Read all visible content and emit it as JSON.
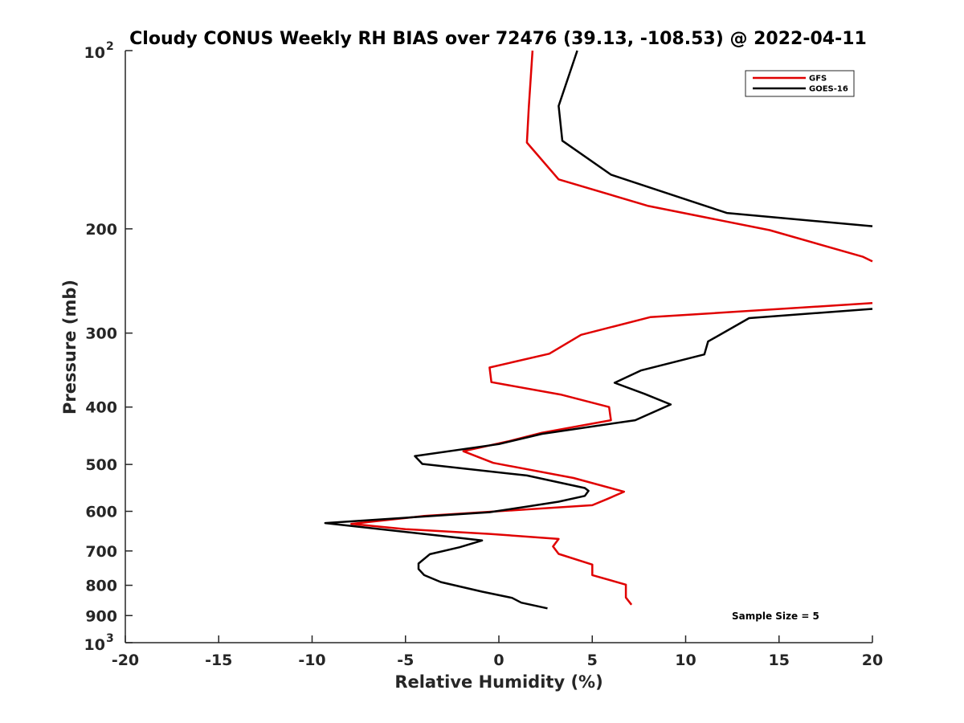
{
  "chart_data": {
    "type": "line",
    "title": "Cloudy CONUS Weekly RH BIAS over 72476 (39.13, -108.53) @ 2022-04-11",
    "xlabel": "Relative Humidity (%)",
    "ylabel": "Pressure (mb)",
    "xlim": [
      -20,
      20
    ],
    "ylim": [
      100,
      1000
    ],
    "y_scale": "log",
    "y_reversed": true,
    "grid": false,
    "legend_position": "top-right",
    "x_ticks": [
      "-20",
      "-15",
      "-10",
      "-5",
      "0",
      "5",
      "10",
      "15",
      "20"
    ],
    "x_tick_values": [
      -20,
      -15,
      -10,
      -5,
      0,
      5,
      10,
      15,
      20
    ],
    "y_ticks": [
      {
        "value": 100,
        "base": "10",
        "exp": "2"
      },
      {
        "value": 200,
        "label": "200"
      },
      {
        "value": 300,
        "label": "300"
      },
      {
        "value": 400,
        "label": "400"
      },
      {
        "value": 500,
        "label": "500"
      },
      {
        "value": 600,
        "label": "600"
      },
      {
        "value": 700,
        "label": "700"
      },
      {
        "value": 800,
        "label": "800"
      },
      {
        "value": 900,
        "label": "900"
      },
      {
        "value": 1000,
        "base": "10",
        "exp": "3"
      }
    ],
    "annotation": "Sample Size = 5",
    "series": [
      {
        "name": "GFS",
        "color": "#e00000",
        "points": [
          [
            1.8,
            100
          ],
          [
            1.6,
            125
          ],
          [
            1.5,
            143
          ],
          [
            3.2,
            165
          ],
          [
            8.0,
            183
          ],
          [
            14.5,
            201
          ],
          [
            19.5,
            223
          ],
          [
            20.0,
            227
          ],
          [
            null,
            null
          ],
          [
            20.0,
            267
          ],
          [
            8.1,
            282
          ],
          [
            4.4,
            302
          ],
          [
            2.7,
            325
          ],
          [
            -0.5,
            343
          ],
          [
            -0.4,
            363
          ],
          [
            3.3,
            381
          ],
          [
            5.9,
            400
          ],
          [
            6.0,
            421
          ],
          [
            2.3,
            442
          ],
          [
            0.5,
            457
          ],
          [
            -1.9,
            475
          ],
          [
            -0.3,
            497
          ],
          [
            4.0,
            527
          ],
          [
            6.7,
            556
          ],
          [
            5.8,
            572
          ],
          [
            5.0,
            586
          ],
          [
            -4.0,
            611
          ],
          [
            -7.9,
            630
          ],
          [
            -5.0,
            643
          ],
          [
            -0.5,
            655
          ],
          [
            3.2,
            668
          ],
          [
            2.9,
            688
          ],
          [
            3.2,
            708
          ],
          [
            5.0,
            738
          ],
          [
            5.0,
            769
          ],
          [
            6.8,
            798
          ],
          [
            6.8,
            839
          ],
          [
            7.1,
            863
          ]
        ]
      },
      {
        "name": "GOES-16",
        "color": "#000000",
        "points": [
          [
            4.2,
            100
          ],
          [
            3.2,
            124
          ],
          [
            3.4,
            142
          ],
          [
            6.0,
            162
          ],
          [
            12.2,
            188
          ],
          [
            20.0,
            198
          ],
          [
            null,
            null
          ],
          [
            20.0,
            273
          ],
          [
            13.4,
            283
          ],
          [
            11.2,
            310
          ],
          [
            11.0,
            326
          ],
          [
            7.6,
            347
          ],
          [
            6.2,
            364
          ],
          [
            7.8,
            380
          ],
          [
            9.2,
            396
          ],
          [
            7.3,
            421
          ],
          [
            2.3,
            444
          ],
          [
            0.0,
            462
          ],
          [
            -4.5,
            484
          ],
          [
            -4.1,
            499
          ],
          [
            1.5,
            522
          ],
          [
            4.6,
            548
          ],
          [
            4.8,
            554
          ],
          [
            4.6,
            565
          ],
          [
            3.2,
            578
          ],
          [
            1.5,
            589
          ],
          [
            -0.5,
            602
          ],
          [
            -9.3,
            628
          ],
          [
            -3.3,
            659
          ],
          [
            -0.9,
            672
          ],
          [
            -2.1,
            690
          ],
          [
            -3.7,
            709
          ],
          [
            -4.3,
            735
          ],
          [
            -4.3,
            751
          ],
          [
            -4.0,
            769
          ],
          [
            -3.1,
            790
          ],
          [
            -0.9,
            820
          ],
          [
            0.7,
            840
          ],
          [
            1.2,
            856
          ],
          [
            2.6,
            875
          ]
        ]
      }
    ]
  }
}
